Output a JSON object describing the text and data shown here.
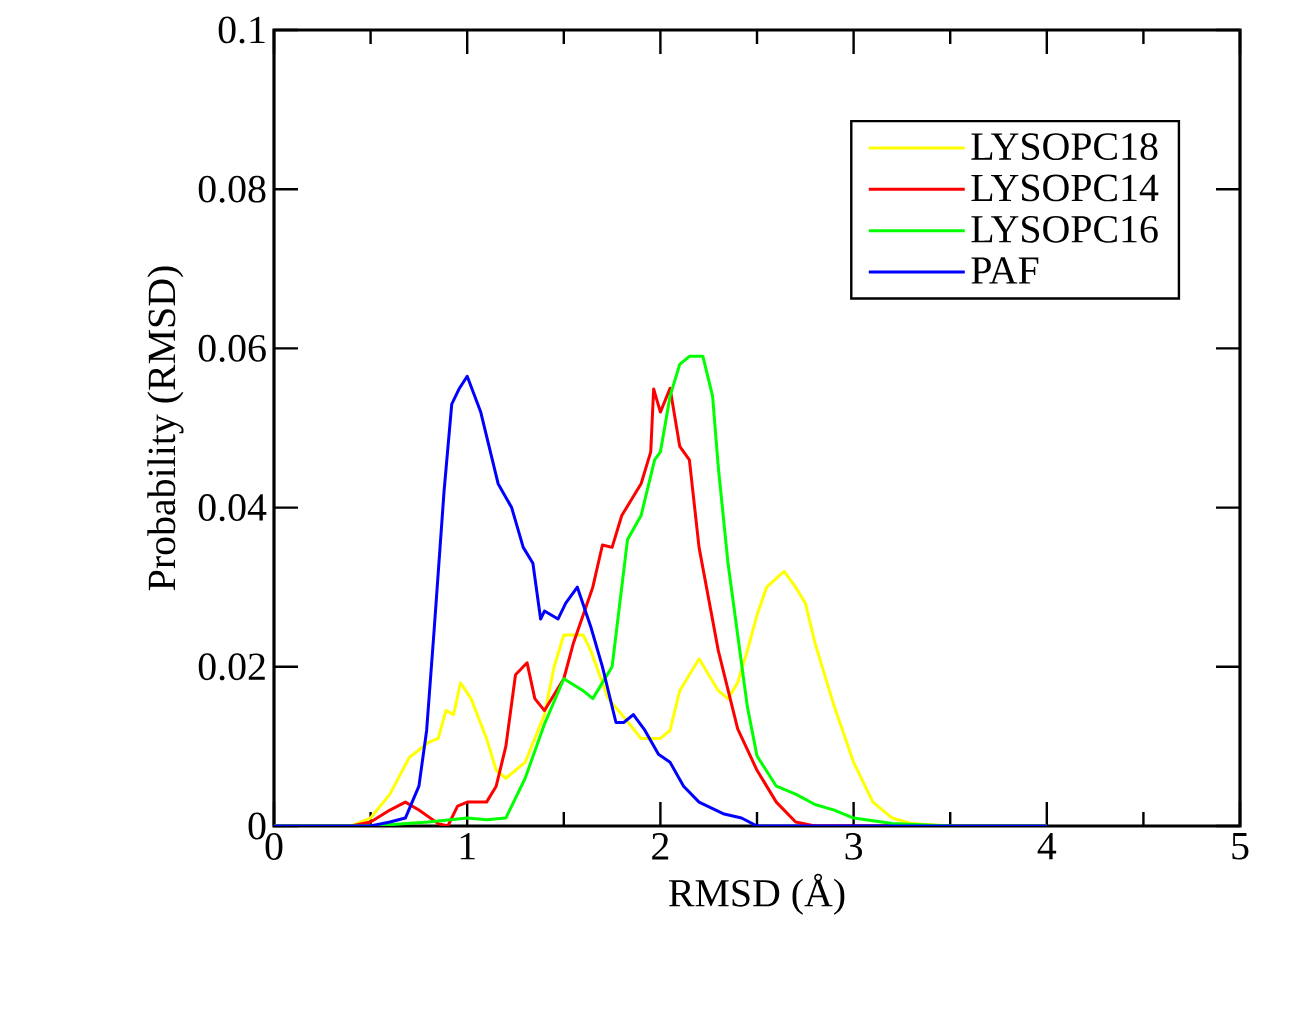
{
  "chart_data": {
    "type": "line",
    "xlabel": "RMSD (Å)",
    "ylabel": "Probability (RMSD)",
    "xlim": [
      0,
      5
    ],
    "ylim": [
      0,
      0.1
    ],
    "xticks": [
      0,
      {
        "value": 0.5,
        "label": null
      },
      1,
      {
        "value": 1.5,
        "label": null
      },
      2,
      {
        "value": 2.5,
        "label": null
      },
      3,
      {
        "value": 3.5,
        "label": null
      },
      4,
      {
        "value": 4.5,
        "label": null
      },
      5
    ],
    "yticks": [
      0,
      0.02,
      0.04,
      0.06,
      0.08,
      0.1
    ],
    "legend": "top right",
    "grid": false,
    "marker": "none",
    "line_style": "solid",
    "series": [
      {
        "name": "LYSOPC18",
        "color": "#ffff00",
        "x": [
          0,
          0.4,
          0.5,
          0.6,
          0.7,
          0.8,
          0.85,
          0.89,
          0.93,
          0.965,
          1.02,
          1.1,
          1.15,
          1.2,
          1.3,
          1.4,
          1.45,
          1.5,
          1.6,
          1.64,
          1.73,
          1.8,
          1.9,
          2.0,
          2.05,
          2.1,
          2.2,
          2.3,
          2.35,
          2.4,
          2.45,
          2.5,
          2.55,
          2.64,
          2.7,
          2.75,
          2.8,
          2.9,
          3.0,
          3.1,
          3.2,
          3.3,
          3.5,
          4.0
        ],
        "values": [
          0,
          0,
          0.001,
          0.004,
          0.0086,
          0.0105,
          0.011,
          0.0145,
          0.014,
          0.018,
          0.016,
          0.011,
          0.007,
          0.006,
          0.008,
          0.014,
          0.02,
          0.024,
          0.024,
          0.022,
          0.016,
          0.014,
          0.011,
          0.011,
          0.012,
          0.017,
          0.021,
          0.017,
          0.016,
          0.018,
          0.022,
          0.0265,
          0.03,
          0.032,
          0.03,
          0.028,
          0.023,
          0.015,
          0.008,
          0.003,
          0.001,
          0.0003,
          0,
          0
        ]
      },
      {
        "name": "LYSOPC14",
        "color": "#ff0000",
        "x": [
          0,
          0.4,
          0.5,
          0.6,
          0.68,
          0.75,
          0.85,
          0.9,
          0.95,
          1.0,
          1.1,
          1.15,
          1.2,
          1.25,
          1.31,
          1.35,
          1.4,
          1.5,
          1.55,
          1.65,
          1.7,
          1.75,
          1.8,
          1.9,
          1.95,
          1.965,
          2.0,
          2.05,
          2.1,
          2.15,
          2.2,
          2.3,
          2.4,
          2.5,
          2.6,
          2.7,
          2.8,
          4.0
        ],
        "values": [
          0,
          0,
          0.0005,
          0.002,
          0.003,
          0.002,
          0.0003,
          0,
          0.0025,
          0.003,
          0.003,
          0.005,
          0.01,
          0.019,
          0.0205,
          0.016,
          0.0145,
          0.0185,
          0.023,
          0.03,
          0.0353,
          0.035,
          0.039,
          0.043,
          0.047,
          0.0549,
          0.052,
          0.055,
          0.0477,
          0.046,
          0.035,
          0.022,
          0.0122,
          0.007,
          0.003,
          0.0005,
          0,
          0
        ]
      },
      {
        "name": "LYSOPC16",
        "color": "#00ff00",
        "x": [
          0,
          0.5,
          0.8,
          1.0,
          1.1,
          1.2,
          1.3,
          1.4,
          1.5,
          1.6,
          1.65,
          1.75,
          1.83,
          1.9,
          1.97,
          2.0,
          2.05,
          2.1,
          2.15,
          2.22,
          2.27,
          2.3,
          2.35,
          2.4,
          2.45,
          2.5,
          2.6,
          2.7,
          2.8,
          2.9,
          3.0,
          3.2,
          3.5,
          4.0
        ],
        "values": [
          0,
          0,
          0.0005,
          0.001,
          0.0008,
          0.001,
          0.006,
          0.0128,
          0.0185,
          0.017,
          0.016,
          0.02,
          0.036,
          0.039,
          0.046,
          0.047,
          0.054,
          0.058,
          0.059,
          0.059,
          0.054,
          0.045,
          0.033,
          0.024,
          0.015,
          0.0088,
          0.005,
          0.004,
          0.0027,
          0.002,
          0.001,
          0.0003,
          0,
          0
        ]
      },
      {
        "name": "PAF",
        "color": "#0000ff",
        "x": [
          0,
          0.5,
          0.6,
          0.68,
          0.75,
          0.79,
          0.83,
          0.88,
          0.92,
          0.96,
          1.0,
          1.07,
          1.16,
          1.23,
          1.29,
          1.34,
          1.38,
          1.4,
          1.47,
          1.51,
          1.57,
          1.64,
          1.7,
          1.77,
          1.81,
          1.86,
          1.92,
          1.99,
          2.05,
          2.12,
          2.2,
          2.33,
          2.42,
          2.5,
          4.0
        ],
        "values": [
          0,
          0,
          0.0005,
          0.001,
          0.005,
          0.012,
          0.025,
          0.042,
          0.053,
          0.055,
          0.0565,
          0.052,
          0.043,
          0.04,
          0.035,
          0.033,
          0.026,
          0.027,
          0.026,
          0.028,
          0.03,
          0.025,
          0.02,
          0.013,
          0.013,
          0.014,
          0.012,
          0.009,
          0.008,
          0.005,
          0.003,
          0.0015,
          0.001,
          0,
          0
        ]
      }
    ]
  }
}
